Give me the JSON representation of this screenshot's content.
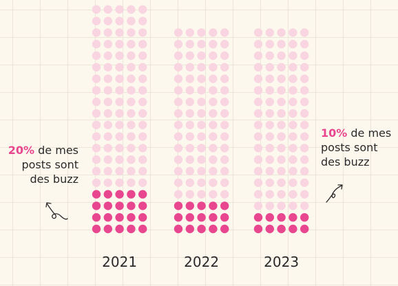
{
  "colors": {
    "highlight": "#e8478f",
    "base": "#f9d5e1"
  },
  "chart_data": {
    "type": "waffle",
    "categories": [
      "2021",
      "2022",
      "2023"
    ],
    "series": [
      {
        "name": "buzz",
        "values": [
          20,
          15,
          10
        ]
      }
    ],
    "columns_per_year": 5,
    "units_per_dot": 1,
    "rows_per_year": [
      20,
      18,
      18
    ]
  },
  "annotations": {
    "left": {
      "pct": "20%",
      "text": " de mes posts sont des buzz"
    },
    "right": {
      "pct": "10%",
      "text": " de mes posts sont des buzz"
    }
  }
}
